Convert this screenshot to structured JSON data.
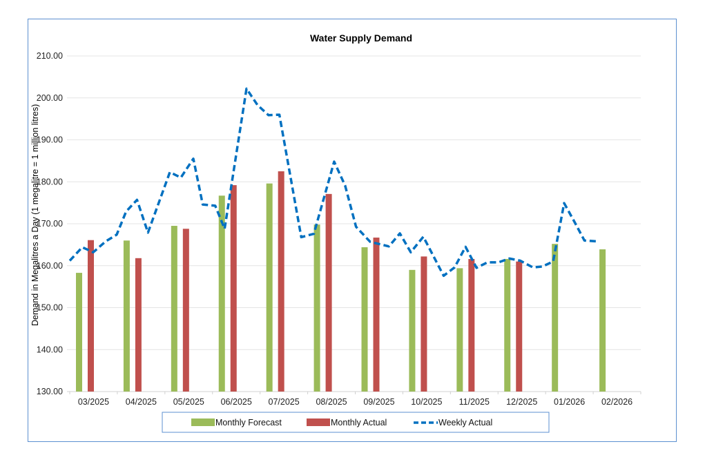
{
  "chart_data": {
    "type": "bar+line",
    "title": "Water Supply Demand",
    "xlabel": "",
    "ylabel": "Demand in Megalitres a Day (1 megalitre = 1 million litres)",
    "ylim": [
      130,
      210
    ],
    "yticks": [
      "130.00",
      "140.00",
      "150.00",
      "160.00",
      "170.00",
      "180.00",
      "190.00",
      "200.00",
      "210.00"
    ],
    "grid": true,
    "legend_position": "bottom",
    "categories": [
      "03/2025",
      "04/2025",
      "05/2025",
      "06/2025",
      "07/2025",
      "08/2025",
      "09/2025",
      "10/2025",
      "11/2025",
      "12/2025",
      "01/2026",
      "02/2026"
    ],
    "series": [
      {
        "name": "Monthly Forecast",
        "type": "bar",
        "color": "#9bbb59",
        "values": [
          158.3,
          166.0,
          169.5,
          176.7,
          179.6,
          169.8,
          164.4,
          159.0,
          159.4,
          161.6,
          165.2,
          163.9
        ]
      },
      {
        "name": "Monthly Actual",
        "type": "bar",
        "color": "#c0504d",
        "values": [
          166.1,
          161.8,
          168.8,
          179.2,
          182.5,
          177.1,
          166.7,
          162.2,
          161.6,
          161.0,
          null,
          null
        ]
      },
      {
        "name": "Weekly Actual",
        "type": "line",
        "style": "dashed",
        "color": "#0070c0",
        "points": [
          {
            "date": "2025-03-01",
            "value": 161.2
          },
          {
            "date": "2025-03-09",
            "value": 164.4
          },
          {
            "date": "2025-03-16",
            "value": 163.2
          },
          {
            "date": "2025-03-24",
            "value": 165.8
          },
          {
            "date": "2025-03-31",
            "value": 167.4
          },
          {
            "date": "2025-04-06",
            "value": 172.9
          },
          {
            "date": "2025-04-13",
            "value": 175.7
          },
          {
            "date": "2025-04-20",
            "value": 167.9
          },
          {
            "date": "2025-05-04",
            "value": 182.3
          },
          {
            "date": "2025-05-11",
            "value": 181.0
          },
          {
            "date": "2025-05-19",
            "value": 185.5
          },
          {
            "date": "2025-05-25",
            "value": 174.6
          },
          {
            "date": "2025-06-02",
            "value": 174.3
          },
          {
            "date": "2025-06-08",
            "value": 168.8
          },
          {
            "date": "2025-06-22",
            "value": 202.2
          },
          {
            "date": "2025-06-29",
            "value": 198.3
          },
          {
            "date": "2025-07-06",
            "value": 195.9
          },
          {
            "date": "2025-07-13",
            "value": 196.0
          },
          {
            "date": "2025-07-27",
            "value": 166.8
          },
          {
            "date": "2025-08-04",
            "value": 167.6
          },
          {
            "date": "2025-08-17",
            "value": 184.8
          },
          {
            "date": "2025-08-24",
            "value": 179.1
          },
          {
            "date": "2025-08-31",
            "value": 169.3
          },
          {
            "date": "2025-09-09",
            "value": 165.7
          },
          {
            "date": "2025-09-21",
            "value": 164.6
          },
          {
            "date": "2025-09-28",
            "value": 167.7
          },
          {
            "date": "2025-10-05",
            "value": 163.2
          },
          {
            "date": "2025-10-13",
            "value": 166.9
          },
          {
            "date": "2025-10-26",
            "value": 157.6
          },
          {
            "date": "2025-11-02",
            "value": 159.6
          },
          {
            "date": "2025-11-09",
            "value": 164.5
          },
          {
            "date": "2025-11-16",
            "value": 159.5
          },
          {
            "date": "2025-11-23",
            "value": 160.8
          },
          {
            "date": "2025-11-30",
            "value": 160.8
          },
          {
            "date": "2025-12-07",
            "value": 161.7
          },
          {
            "date": "2025-12-14",
            "value": 161.2
          },
          {
            "date": "2025-12-22",
            "value": 159.6
          },
          {
            "date": "2025-12-28",
            "value": 159.8
          },
          {
            "date": "2026-01-04",
            "value": 161.0
          },
          {
            "date": "2026-01-11",
            "value": 174.9
          },
          {
            "date": "2026-01-18",
            "value": 170.2
          },
          {
            "date": "2026-01-24",
            "value": 166.0
          },
          {
            "date": "2026-02-01",
            "value": 165.8
          }
        ]
      }
    ]
  }
}
